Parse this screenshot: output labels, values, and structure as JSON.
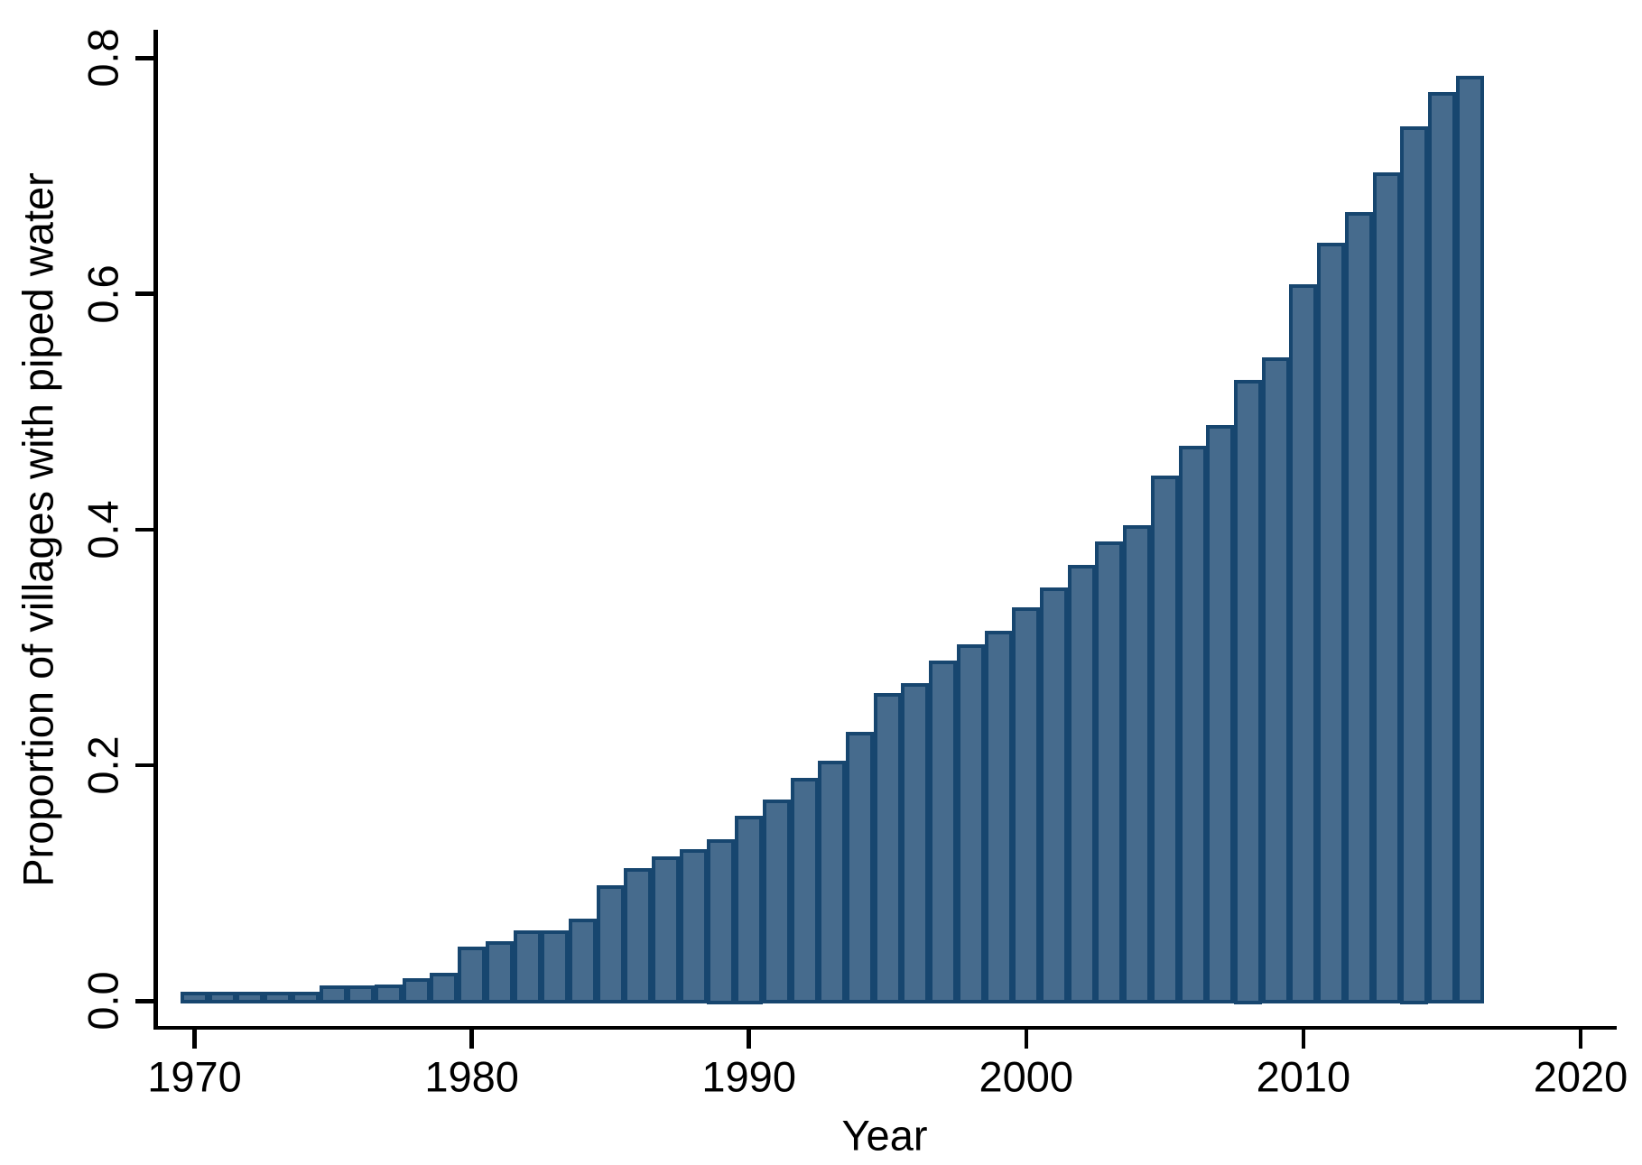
{
  "chart_data": {
    "type": "bar",
    "title": "",
    "xlabel": "Year",
    "ylabel": "Proportion of villages with piped water",
    "x": [
      1970,
      1971,
      1972,
      1973,
      1974,
      1975,
      1976,
      1977,
      1978,
      1979,
      1980,
      1981,
      1982,
      1983,
      1984,
      1985,
      1986,
      1987,
      1988,
      1989,
      1990,
      1991,
      1992,
      1993,
      1994,
      1995,
      1996,
      1997,
      1998,
      1999,
      2000,
      2001,
      2002,
      2003,
      2004,
      2005,
      2006,
      2007,
      2008,
      2009,
      2010,
      2011,
      2012,
      2013,
      2014,
      2015,
      2016
    ],
    "values": [
      0.008,
      0.008,
      0.008,
      0.008,
      0.008,
      0.013,
      0.013,
      0.014,
      0.019,
      0.024,
      0.046,
      0.051,
      0.06,
      0.06,
      0.07,
      0.098,
      0.113,
      0.123,
      0.129,
      0.137,
      0.157,
      0.171,
      0.189,
      0.204,
      0.228,
      0.261,
      0.27,
      0.289,
      0.303,
      0.314,
      0.334,
      0.351,
      0.37,
      0.39,
      0.404,
      0.446,
      0.471,
      0.489,
      0.527,
      0.546,
      0.608,
      0.643,
      0.669,
      0.703,
      0.742,
      0.771,
      0.785
    ],
    "xtick_values": [
      1970,
      1980,
      1990,
      2000,
      2010,
      2020
    ],
    "xtick_labels": [
      "1970",
      "1980",
      "1990",
      "2000",
      "2010",
      "2020"
    ],
    "ytick_values": [
      0.0,
      0.2,
      0.4,
      0.6,
      0.8
    ],
    "ytick_labels": [
      "0.0",
      "0.2",
      "0.4",
      "0.6",
      "0.8"
    ],
    "ylim": [
      0,
      0.8
    ],
    "xlim": [
      1968.5,
      2021.3
    ],
    "grid": false,
    "legend": null,
    "bar_fill_color": "#466b8d",
    "bar_outline_color": "#17466f",
    "axis_color": "#000000"
  }
}
